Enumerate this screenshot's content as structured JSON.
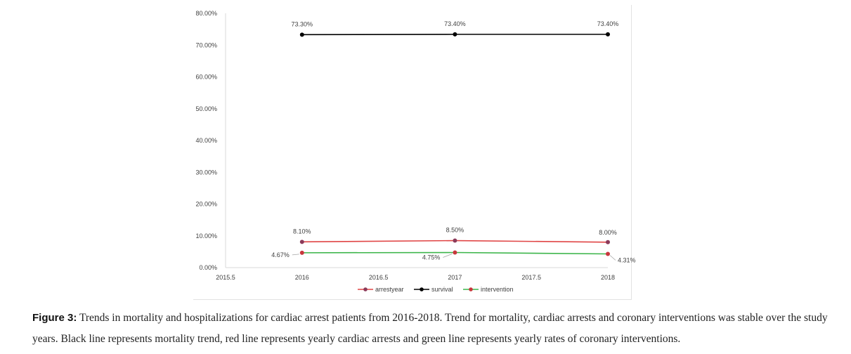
{
  "chart_data": {
    "type": "line",
    "title": "",
    "xlabel": "",
    "ylabel": "",
    "x_ticks": [
      "2015.5",
      "2016",
      "2016.5",
      "2017",
      "2017.5",
      "2018"
    ],
    "y_ticks": [
      "0.00%",
      "10.00%",
      "20.00%",
      "30.00%",
      "40.00%",
      "50.00%",
      "60.00%",
      "70.00%",
      "80.00%"
    ],
    "xlim": [
      2015.5,
      2018
    ],
    "ylim": [
      0,
      80
    ],
    "x": [
      2016,
      2017,
      2018
    ],
    "legend_position": "bottom",
    "series": [
      {
        "name": "arrestyear",
        "color": "#e04545",
        "marker_color": "#8b3a5a",
        "values": [
          8.1,
          8.5,
          8.0
        ],
        "labels": [
          "8.10%",
          "8.50%",
          "8.00%"
        ]
      },
      {
        "name": "survival",
        "color": "#000000",
        "marker_color": "#000000",
        "values": [
          73.3,
          73.4,
          73.4
        ],
        "labels": [
          "73.30%",
          "73.40%",
          "73.40%"
        ]
      },
      {
        "name": "intervention",
        "color": "#3cb54a",
        "marker_color": "#c8373d",
        "values": [
          4.67,
          4.75,
          4.31
        ],
        "labels": [
          "4.67%",
          "4.75%",
          "4.31%"
        ]
      }
    ]
  },
  "caption": {
    "label": "Figure 3:",
    "text": " Trends in mortality and hospitalizations for cardiac arrest patients from 2016-2018. Trend for mortality, cardiac arrests and coronary interventions was stable over the study years. Black line represents mortality trend, red line represents yearly cardiac arrests and green line represents yearly rates of coronary interventions."
  }
}
